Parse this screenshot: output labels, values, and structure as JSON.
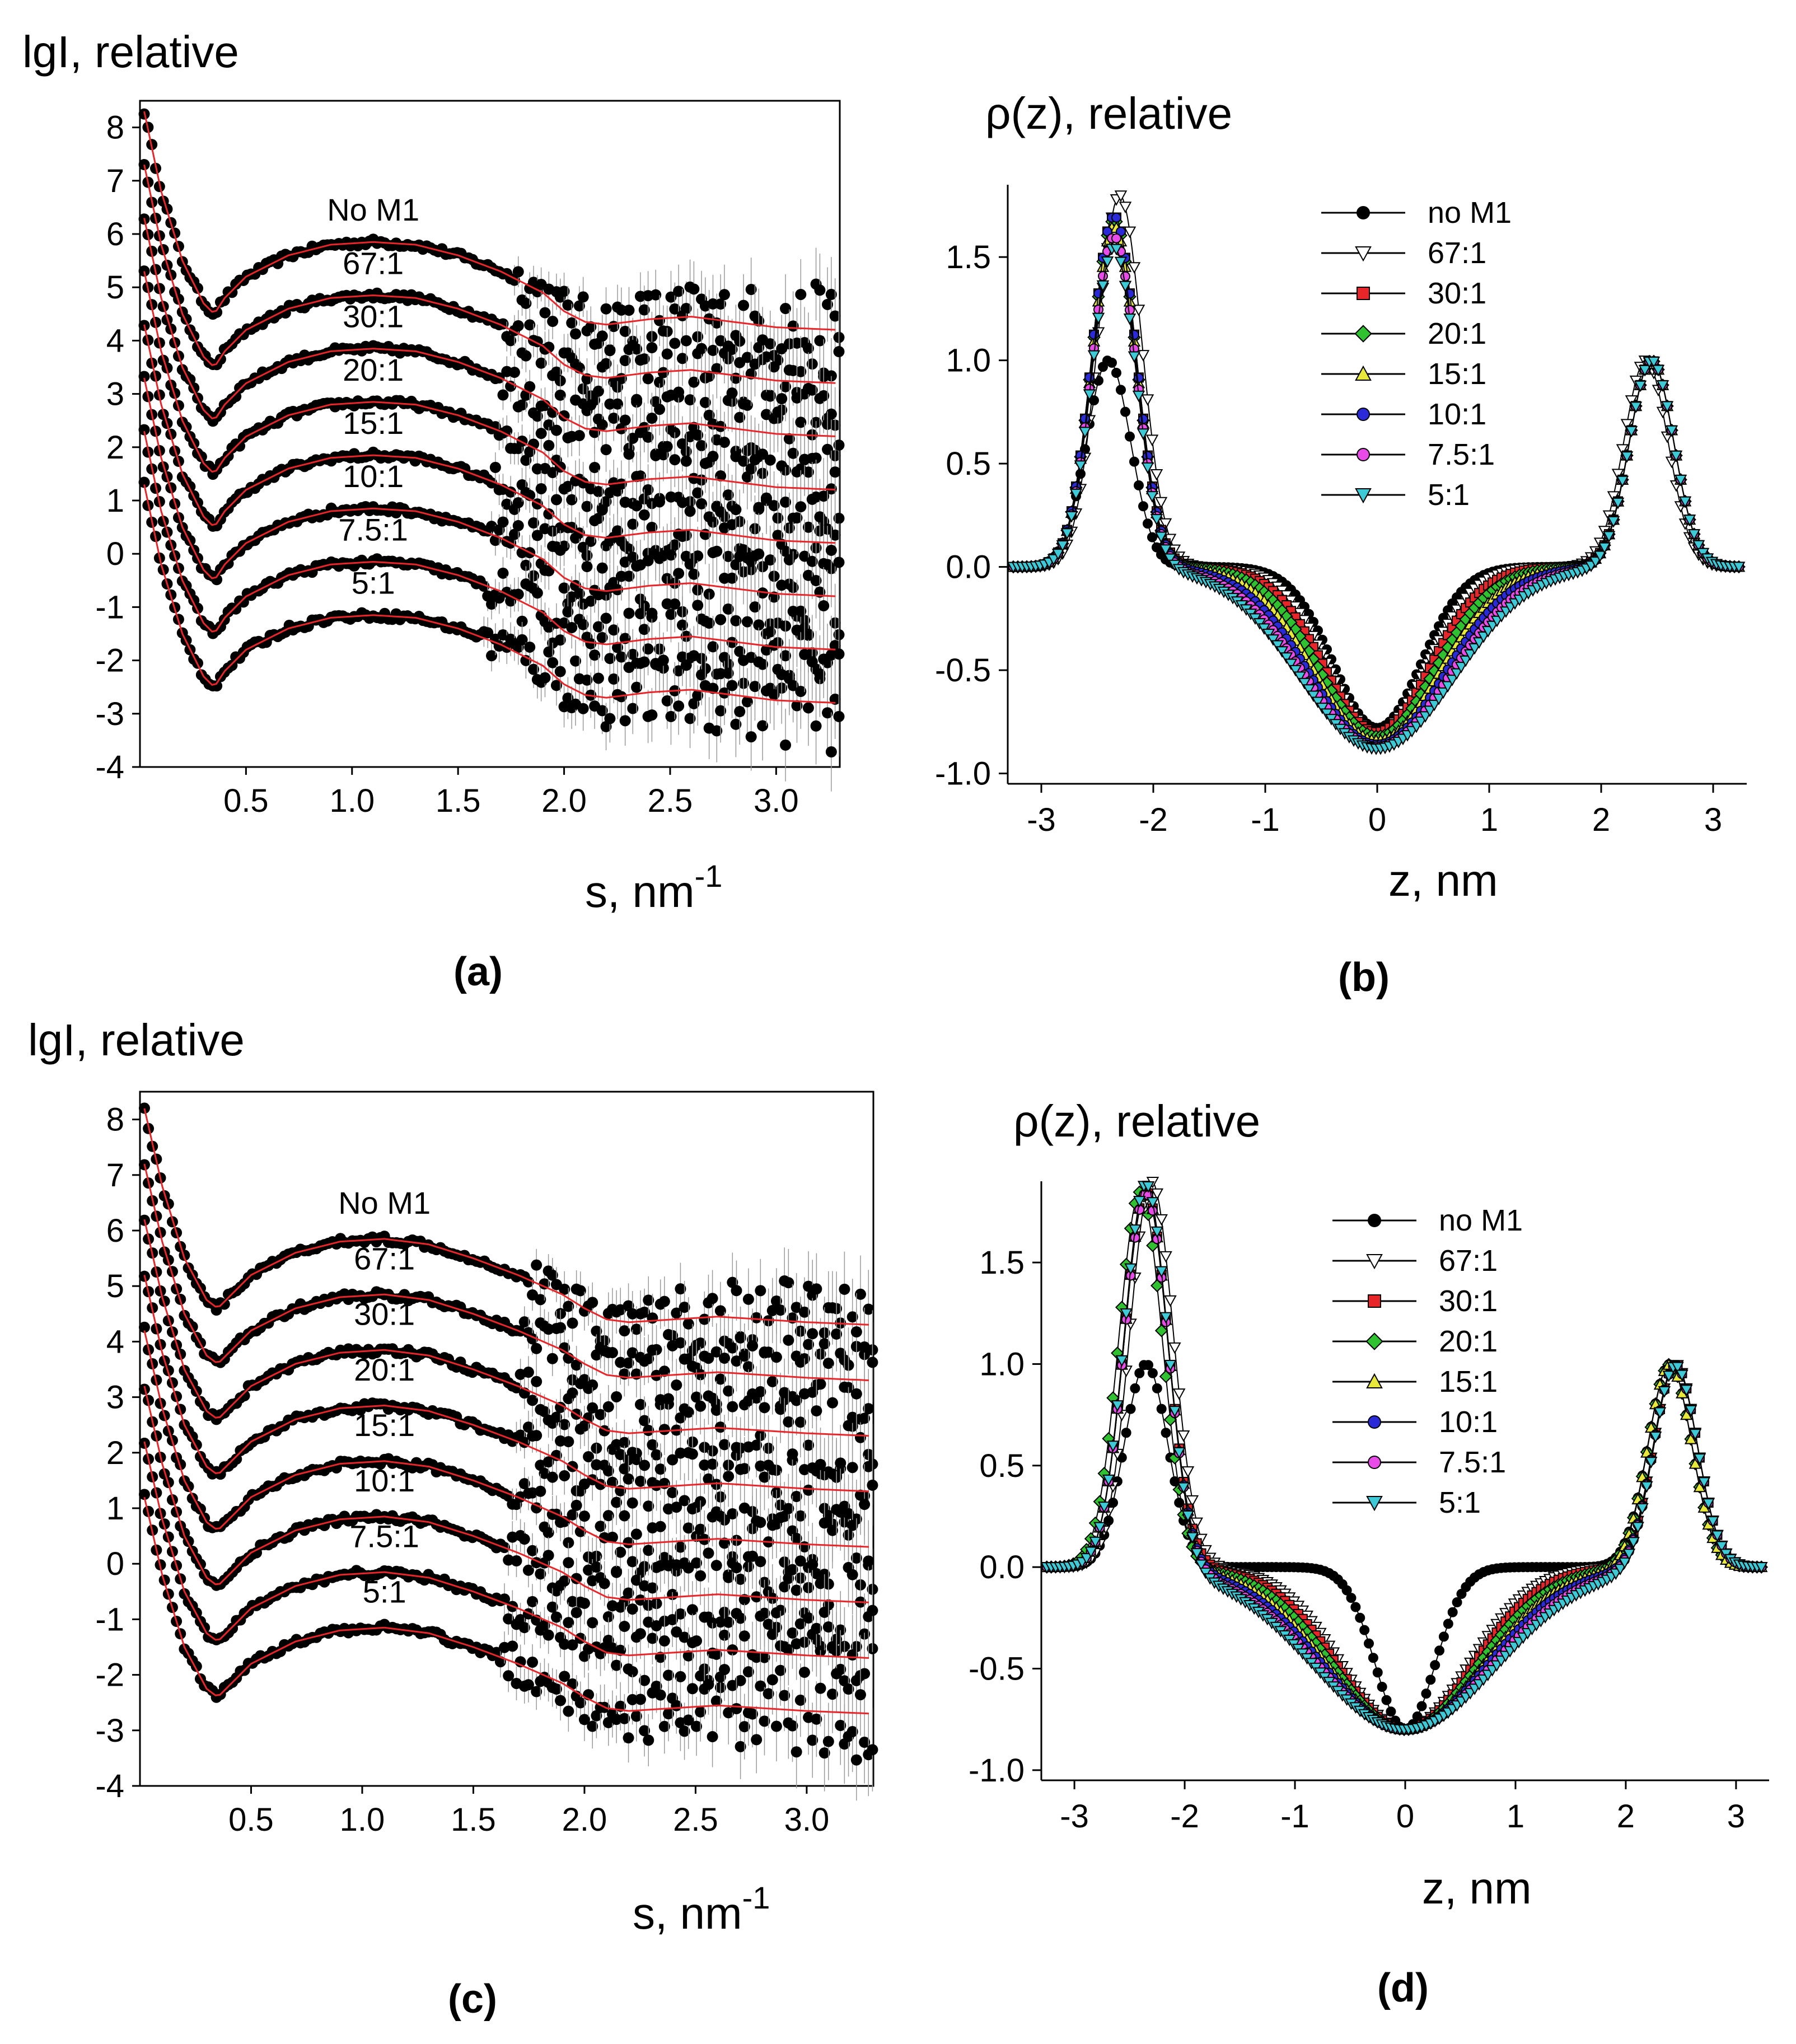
{
  "panels": [
    {
      "id": "a",
      "label": "(a)",
      "type": "scatter",
      "title": "lgI, relative",
      "xlabel": "s, nm",
      "xlabel_sup": "-1",
      "xticks": [
        "0.5",
        "1.0",
        "1.5",
        "2.0",
        "2.5",
        "3.0"
      ],
      "xtick_values": [
        0.5,
        1.0,
        1.5,
        2.0,
        2.5,
        3.0
      ],
      "yticks": [
        "8",
        "7",
        "6",
        "5",
        "4",
        "3",
        "2",
        "1",
        "0",
        "-1",
        "-2",
        "-3",
        "-4"
      ],
      "ytick_values": [
        8,
        7,
        6,
        5,
        4,
        3,
        2,
        1,
        0,
        -1,
        -2,
        -3,
        -4
      ],
      "xlim": [
        0,
        3.3
      ],
      "ylim": [
        -4,
        8.5
      ],
      "curve_labels": [
        "No M1",
        "67:1",
        "30:1",
        "20:1",
        "15:1",
        "10:1",
        "7.5:1",
        "5:1"
      ],
      "curve_offsets": [
        0,
        -1,
        -2,
        -3,
        -4,
        -5,
        -6,
        -7
      ]
    },
    {
      "id": "b",
      "label": "(b)",
      "type": "line",
      "title": "ρ(z), relative",
      "xlabel": "z, nm",
      "xticks": [
        "-3",
        "-2",
        "-1",
        "0",
        "1",
        "2",
        "3"
      ],
      "xtick_values": [
        -3,
        -2,
        -1,
        0,
        1,
        2,
        3
      ],
      "yticks": [
        "1.5",
        "1.0",
        "0.5",
        "0.0",
        "-0.5",
        "-1.0"
      ],
      "ytick_values": [
        1.5,
        1.0,
        0.5,
        0.0,
        -0.5,
        -1.0
      ],
      "xlim": [
        -3.3,
        3.3
      ],
      "ylim": [
        -1.05,
        1.85
      ],
      "legend_position": "top-right"
    },
    {
      "id": "c",
      "label": "(c)",
      "type": "scatter",
      "title": "lgI, relative",
      "xlabel": "s, nm",
      "xlabel_sup": "-1",
      "xticks": [
        "0.5",
        "1.0",
        "1.5",
        "2.0",
        "2.5",
        "3.0"
      ],
      "xtick_values": [
        0.5,
        1.0,
        1.5,
        2.0,
        2.5,
        3.0
      ],
      "yticks": [
        "8",
        "7",
        "6",
        "5",
        "4",
        "3",
        "2",
        "1",
        "0",
        "-1",
        "-2",
        "-3",
        "-4"
      ],
      "ytick_values": [
        8,
        7,
        6,
        5,
        4,
        3,
        2,
        1,
        0,
        -1,
        -2,
        -3,
        -4
      ],
      "xlim": [
        0,
        3.3
      ],
      "ylim": [
        -4,
        8.5
      ],
      "curve_labels": [
        "No M1",
        "67:1",
        "30:1",
        "20:1",
        "15:1",
        "10:1",
        "7.5:1",
        "5:1"
      ],
      "curve_offsets": [
        0,
        -1,
        -2,
        -3,
        -4,
        -5,
        -6,
        -7
      ]
    },
    {
      "id": "d",
      "label": "(d)",
      "type": "line",
      "title": "ρ(z), relative",
      "xlabel": "z, nm",
      "xticks": [
        "-3",
        "-2",
        "-1",
        "0",
        "1",
        "2",
        "3"
      ],
      "xtick_values": [
        -3,
        -2,
        -1,
        0,
        1,
        2,
        3
      ],
      "yticks": [
        "1.5",
        "1.0",
        "0.5",
        "0.0",
        "-0.5",
        "-1.0"
      ],
      "ytick_values": [
        1.5,
        1.0,
        0.5,
        0.0,
        -0.5,
        -1.0
      ],
      "xlim": [
        -3.3,
        3.3
      ],
      "ylim": [
        -1.05,
        1.9
      ],
      "legend_position": "top-right"
    }
  ],
  "legend": [
    {
      "name": "no M1",
      "color": "#000000",
      "fill": "#000000",
      "marker": "circle"
    },
    {
      "name": "67:1",
      "color": "#000000",
      "fill": "#ffffff",
      "marker": "triangle-down"
    },
    {
      "name": "30:1",
      "color": "#000000",
      "fill": "#e8262a",
      "marker": "square"
    },
    {
      "name": "20:1",
      "color": "#000000",
      "fill": "#2fc12f",
      "marker": "diamond"
    },
    {
      "name": "15:1",
      "color": "#000000",
      "fill": "#e8e83a",
      "marker": "triangle-up"
    },
    {
      "name": "10:1",
      "color": "#000000",
      "fill": "#2a2ad8",
      "marker": "circle"
    },
    {
      "name": "7.5:1",
      "color": "#000000",
      "fill": "#e84be8",
      "marker": "circle"
    },
    {
      "name": "5:1",
      "color": "#000000",
      "fill": "#3ec9d6",
      "marker": "triangle-down"
    }
  ],
  "fit_color": "#e8262a",
  "chart_data": [
    {
      "type": "scatter",
      "panel": "a",
      "description_series": "scattering curves shifted by -1 per series; base shape",
      "x": [
        0.02,
        0.1,
        0.2,
        0.3,
        0.35,
        0.4,
        0.5,
        0.7,
        0.9,
        1.1,
        1.3,
        1.5,
        1.7,
        1.9,
        2.0,
        2.1,
        2.2,
        2.4,
        2.6,
        2.8,
        3.0,
        3.3
      ],
      "base_y": [
        8.3,
        6.8,
        5.5,
        4.7,
        4.5,
        4.8,
        5.2,
        5.6,
        5.8,
        5.85,
        5.8,
        5.6,
        5.3,
        4.9,
        4.55,
        4.35,
        4.3,
        4.4,
        4.45,
        4.35,
        4.25,
        4.2
      ],
      "series": [
        {
          "name": "No M1",
          "offset": 0
        },
        {
          "name": "67:1",
          "offset": -1
        },
        {
          "name": "30:1",
          "offset": -2
        },
        {
          "name": "20:1",
          "offset": -3
        },
        {
          "name": "15:1",
          "offset": -4
        },
        {
          "name": "10:1",
          "offset": -5
        },
        {
          "name": "7.5:1",
          "offset": -6
        },
        {
          "name": "5:1",
          "offset": -7
        }
      ]
    },
    {
      "type": "line",
      "panel": "b",
      "series": [
        {
          "name": "no M1",
          "peak_left": 1.0,
          "peak_left_z": -2.4,
          "peak_right": 1.0,
          "peak_right_z": 2.45,
          "min": -0.78
        },
        {
          "name": "67:1",
          "peak_left": 1.8,
          "peak_left_z": -2.3,
          "peak_right": 1.0,
          "peak_right_z": 2.4,
          "min": -0.8
        },
        {
          "name": "30:1",
          "peak_left": 1.7,
          "peak_left_z": -2.35,
          "peak_right": 1.0,
          "peak_right_z": 2.45,
          "min": -0.8
        },
        {
          "name": "20:1",
          "peak_left": 1.68,
          "peak_left_z": -2.35,
          "peak_right": 1.0,
          "peak_right_z": 2.45,
          "min": -0.82
        },
        {
          "name": "15:1",
          "peak_left": 1.65,
          "peak_left_z": -2.35,
          "peak_right": 1.0,
          "peak_right_z": 2.45,
          "min": -0.84
        },
        {
          "name": "10:1",
          "peak_left": 1.7,
          "peak_left_z": -2.35,
          "peak_right": 1.0,
          "peak_right_z": 2.45,
          "min": -0.86
        },
        {
          "name": "7.5:1",
          "peak_left": 1.6,
          "peak_left_z": -2.35,
          "peak_right": 1.0,
          "peak_right_z": 2.45,
          "min": -0.87
        },
        {
          "name": "5:1",
          "peak_left": 1.55,
          "peak_left_z": -2.35,
          "peak_right": 1.0,
          "peak_right_z": 2.45,
          "min": -0.88
        }
      ]
    },
    {
      "type": "scatter",
      "panel": "c",
      "x": [
        0.02,
        0.1,
        0.2,
        0.3,
        0.35,
        0.4,
        0.5,
        0.7,
        0.9,
        1.1,
        1.3,
        1.5,
        1.7,
        1.9,
        2.0,
        2.1,
        2.2,
        2.4,
        2.6,
        2.8,
        3.0,
        3.3
      ],
      "base_y": [
        8.2,
        6.8,
        5.5,
        4.75,
        4.6,
        4.8,
        5.2,
        5.6,
        5.8,
        5.85,
        5.75,
        5.5,
        5.2,
        4.85,
        4.6,
        4.4,
        4.35,
        4.4,
        4.45,
        4.4,
        4.35,
        4.3
      ],
      "series": [
        {
          "name": "No M1",
          "offset": 0
        },
        {
          "name": "67:1",
          "offset": -1
        },
        {
          "name": "30:1",
          "offset": -2
        },
        {
          "name": "20:1",
          "offset": -3
        },
        {
          "name": "15:1",
          "offset": -4
        },
        {
          "name": "10:1",
          "offset": -5
        },
        {
          "name": "7.5:1",
          "offset": -6
        },
        {
          "name": "5:1",
          "offset": -7
        }
      ]
    },
    {
      "type": "line",
      "panel": "d",
      "series": [
        {
          "name": "no M1",
          "peak_left": 1.0,
          "peak_left_z": -2.35,
          "peak_right": 1.0,
          "peak_right_z": 2.4,
          "min": -0.8,
          "flat": true
        },
        {
          "name": "67:1",
          "peak_left": 1.9,
          "peak_left_z": -2.3,
          "peak_right": 1.0,
          "peak_right_z": 2.45,
          "min": -0.8
        },
        {
          "name": "30:1",
          "peak_left": 1.85,
          "peak_left_z": -2.35,
          "peak_right": 1.0,
          "peak_right_z": 2.45,
          "min": -0.8
        },
        {
          "name": "20:1",
          "peak_left": 1.85,
          "peak_left_z": -2.4,
          "peak_right": 1.0,
          "peak_right_z": 2.4,
          "min": -0.8
        },
        {
          "name": "15:1",
          "peak_left": 1.85,
          "peak_left_z": -2.35,
          "peak_right": 1.0,
          "peak_right_z": 2.4,
          "min": -0.8
        },
        {
          "name": "10:1",
          "peak_left": 1.85,
          "peak_left_z": -2.35,
          "peak_right": 1.0,
          "peak_right_z": 2.45,
          "min": -0.8
        },
        {
          "name": "7.5:1",
          "peak_left": 1.85,
          "peak_left_z": -2.35,
          "peak_right": 1.0,
          "peak_right_z": 2.45,
          "min": -0.8
        },
        {
          "name": "5:1",
          "peak_left": 1.9,
          "peak_left_z": -2.35,
          "peak_right": 1.0,
          "peak_right_z": 2.45,
          "min": -0.8
        }
      ]
    }
  ]
}
